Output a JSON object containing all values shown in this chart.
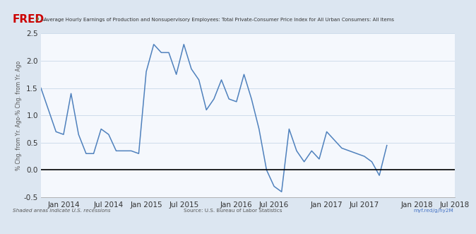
{
  "title": "Average Hourly Earnings of Production and Nonsupervisory Employees: Total Private-Consumer Price Index for All Urban Consumers: All Items",
  "ylabel": "% Chg. from Yr. Ago-% Chg. from Yr. Ago",
  "footer_left": "Shaded areas indicate U.S. recessions",
  "footer_center": "Source: U.S. Bureau of Labor Statistics",
  "footer_right": "myf.red/g/hy2M",
  "ylim": [
    -0.5,
    2.5
  ],
  "yticks": [
    -0.5,
    0.0,
    0.5,
    1.0,
    1.5,
    2.0,
    2.5
  ],
  "line_color": "#4f81bd",
  "zero_line_color": "#000000",
  "bg_color": "#dce6f1",
  "plot_bg_color": "#f5f8fd",
  "fred_red": "#cc0000",
  "values": [
    1.5,
    1.1,
    0.7,
    0.65,
    1.4,
    0.65,
    0.3,
    0.3,
    0.75,
    0.65,
    0.35,
    0.35,
    0.35,
    0.3,
    1.8,
    2.3,
    2.15,
    2.15,
    1.75,
    2.3,
    1.85,
    1.65,
    1.1,
    1.3,
    1.65,
    1.3,
    1.25,
    1.75,
    1.3,
    0.75,
    0.0,
    -0.3,
    -0.4,
    0.75,
    0.35,
    0.15,
    0.35,
    0.2,
    0.7,
    0.55,
    0.4,
    0.35,
    0.3,
    0.25,
    0.15,
    -0.1,
    0.45
  ],
  "xtick_labels": [
    "Jan 2014",
    "Jul 2014",
    "Jan 2015",
    "Jul 2015",
    "Jan 2016",
    "Jul 2016",
    "Jan 2017",
    "Jul 2017",
    "Jan 2018",
    "Jul 2018"
  ],
  "xtick_positions": [
    3,
    9,
    14,
    19,
    26,
    31,
    38,
    43,
    50,
    55
  ],
  "n_points": 47
}
